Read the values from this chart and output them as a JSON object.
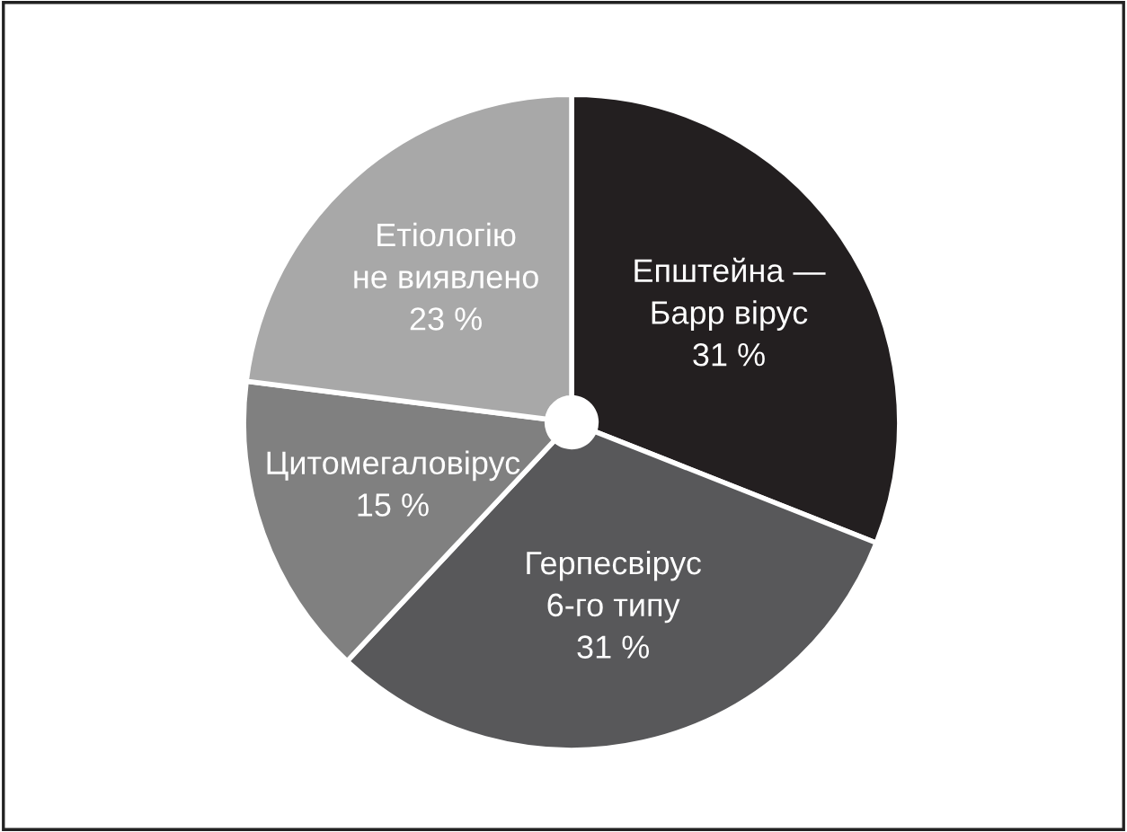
{
  "chart_data": {
    "type": "pie",
    "categories": [
      "Епштейна —\nБарр вірус",
      "Герпесвірус\n6-го типу",
      "Цитомегаловірус",
      "Етіологію\nне виявлено"
    ],
    "values": [
      31,
      31,
      15,
      23
    ],
    "colors": [
      "#231f20",
      "#58585a",
      "#808080",
      "#a8a8a8"
    ],
    "value_labels": [
      "31 %",
      "31 %",
      "15 %",
      "23 %"
    ],
    "legend": false
  }
}
